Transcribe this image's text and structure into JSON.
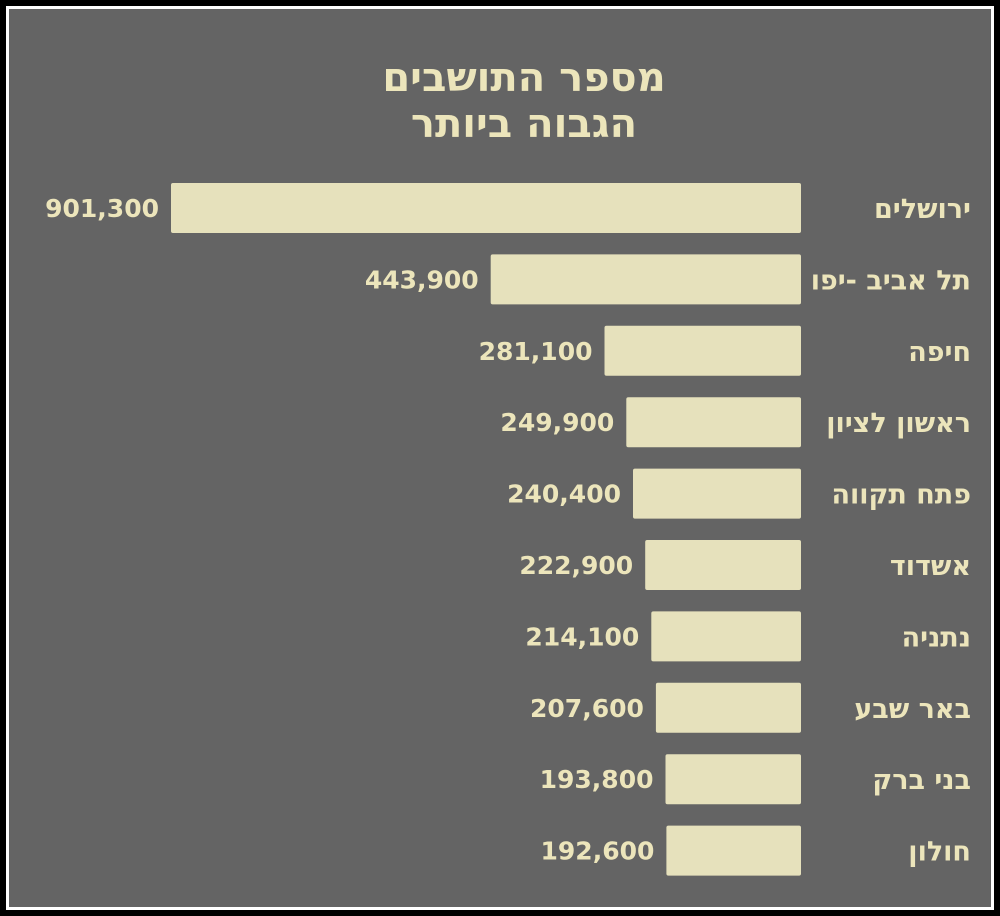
{
  "chart_data": {
    "type": "bar",
    "orientation": "horizontal",
    "title_lines": [
      "מספר התושבים",
      "הגבוה ביותר"
    ],
    "categories": [
      "ירושלים",
      "תל אביב -יפו",
      "חיפה",
      "ראשון לציון",
      "פתח תקווה",
      "אשדוד",
      "נתניה",
      "באר שבע",
      "בני ברק",
      "חולון"
    ],
    "values": [
      901300,
      443900,
      281100,
      249900,
      240400,
      222900,
      214100,
      207600,
      193800,
      192600
    ],
    "value_labels": [
      "901,300",
      "443,900",
      "281,100",
      "249,900",
      "240,400",
      "222,900",
      "214,100",
      "207,600",
      "193,800",
      "192,600"
    ],
    "xlim": [
      0,
      901300
    ],
    "grid": false,
    "legend": "none"
  },
  "colors": {
    "background": "#646464",
    "frame": "#ffffff",
    "outer": "#000000",
    "bar": "#e6e1bc",
    "text": "#ece5bb"
  }
}
